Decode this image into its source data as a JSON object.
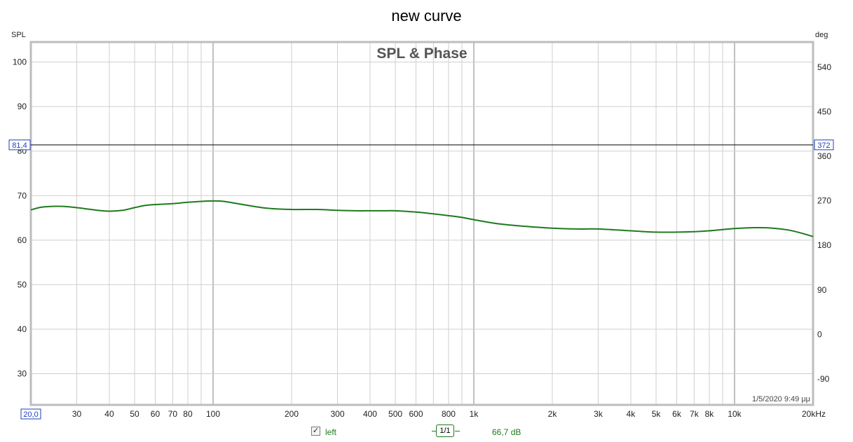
{
  "window": {
    "title": "new curve"
  },
  "chart_data": {
    "type": "line",
    "title": "SPL & Phase",
    "x_scale": "log",
    "xlim": [
      20,
      20000
    ],
    "ylim": [
      23,
      104.5
    ],
    "y2lim": [
      -142.5,
      591
    ],
    "y_axis_label": "SPL",
    "y2_axis_label": "deg",
    "x_ticks": [
      {
        "value": 30,
        "label": "30"
      },
      {
        "value": 40,
        "label": "40"
      },
      {
        "value": 50,
        "label": "50"
      },
      {
        "value": 60,
        "label": "60"
      },
      {
        "value": 70,
        "label": "70"
      },
      {
        "value": 80,
        "label": "80"
      },
      {
        "value": 100,
        "label": "100"
      },
      {
        "value": 200,
        "label": "200"
      },
      {
        "value": 300,
        "label": "300"
      },
      {
        "value": 400,
        "label": "400"
      },
      {
        "value": 500,
        "label": "500"
      },
      {
        "value": 600,
        "label": "600"
      },
      {
        "value": 800,
        "label": "800"
      },
      {
        "value": 1000,
        "label": "1k"
      },
      {
        "value": 2000,
        "label": "2k"
      },
      {
        "value": 3000,
        "label": "3k"
      },
      {
        "value": 4000,
        "label": "4k"
      },
      {
        "value": 5000,
        "label": "5k"
      },
      {
        "value": 6000,
        "label": "6k"
      },
      {
        "value": 7000,
        "label": "7k"
      },
      {
        "value": 8000,
        "label": "8k"
      },
      {
        "value": 10000,
        "label": "10k"
      },
      {
        "value": 20000,
        "label": "20kHz"
      }
    ],
    "x_start_label": "20,0",
    "y_ticks": [
      {
        "value": 30,
        "label": "30"
      },
      {
        "value": 40,
        "label": "40"
      },
      {
        "value": 50,
        "label": "50"
      },
      {
        "value": 60,
        "label": "60"
      },
      {
        "value": 70,
        "label": "70"
      },
      {
        "value": 80,
        "label": "80"
      },
      {
        "value": 90,
        "label": "90"
      },
      {
        "value": 100,
        "label": "100"
      }
    ],
    "y2_ticks": [
      {
        "value": -90,
        "label": "-90"
      },
      {
        "value": 0,
        "label": "0"
      },
      {
        "value": 90,
        "label": "90"
      },
      {
        "value": 180,
        "label": "180"
      },
      {
        "value": 270,
        "label": "270"
      },
      {
        "value": 360,
        "label": "360"
      },
      {
        "value": 450,
        "label": "450"
      },
      {
        "value": 540,
        "label": "540"
      }
    ],
    "cursor": {
      "y": 81.4,
      "label_left": "81,4",
      "label_right": "372"
    },
    "timestamp": "1/5/2020 9:49 μμ",
    "series": [
      {
        "name": "left",
        "color": "#1e7a1e",
        "x": [
          20,
          22,
          25,
          28,
          32,
          36,
          40,
          45,
          50,
          55,
          60,
          70,
          80,
          90,
          100,
          110,
          130,
          160,
          200,
          250,
          300,
          350,
          400,
          450,
          500,
          600,
          700,
          800,
          900,
          1000,
          1200,
          1500,
          2000,
          2500,
          3000,
          4000,
          5000,
          6000,
          7000,
          8000,
          10000,
          12000,
          14000,
          16000,
          18000,
          20000
        ],
        "y": [
          66.8,
          67.4,
          67.6,
          67.5,
          67.1,
          66.7,
          66.5,
          66.7,
          67.3,
          67.8,
          68.0,
          68.2,
          68.5,
          68.7,
          68.8,
          68.7,
          68.0,
          67.2,
          66.9,
          66.9,
          66.7,
          66.6,
          66.6,
          66.6,
          66.6,
          66.3,
          65.9,
          65.5,
          65.1,
          64.6,
          63.8,
          63.2,
          62.7,
          62.5,
          62.5,
          62.1,
          61.8,
          61.8,
          61.9,
          62.1,
          62.6,
          62.8,
          62.7,
          62.3,
          61.6,
          60.8
        ]
      }
    ]
  },
  "legend": {
    "checkbox_checked": true,
    "check_mark": "✓",
    "series_name": "left",
    "smoothing": "1/1",
    "value_readout": "66,7 dB"
  }
}
